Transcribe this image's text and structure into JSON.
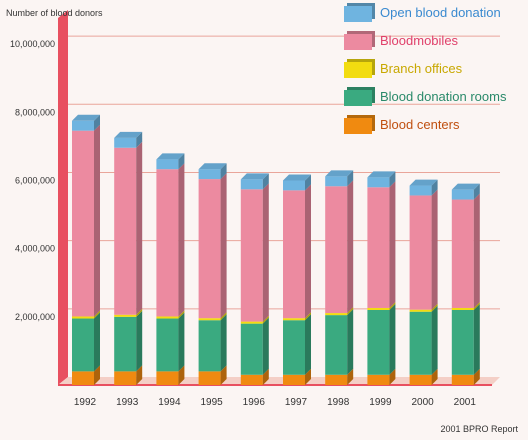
{
  "chart_data": {
    "type": "bar",
    "stacked": true,
    "ylabel": "Number of blood donors",
    "source": "2001 BPRO Report",
    "categories": [
      "1992",
      "1993",
      "1994",
      "1995",
      "1996",
      "1997",
      "1998",
      "1999",
      "2000",
      "2001"
    ],
    "ylim": [
      0,
      11000000
    ],
    "yticks": [
      "2,000,000",
      "4,000,000",
      "6,000,000",
      "8,000,000",
      "10,000,000"
    ],
    "ytick_values": [
      2000000,
      4000000,
      6000000,
      8000000,
      10000000
    ],
    "grid": true,
    "legend_position": "top-right",
    "series": [
      {
        "name": "Blood centers",
        "color": "#f08a10",
        "label_color": "#c05010",
        "values": [
          400000,
          400000,
          400000,
          400000,
          300000,
          300000,
          300000,
          300000,
          300000,
          300000
        ]
      },
      {
        "name": "Blood donation rooms",
        "color": "#3aaa80",
        "label_color": "#2a8a6a",
        "values": [
          1550000,
          1600000,
          1550000,
          1500000,
          1500000,
          1600000,
          1750000,
          1900000,
          1850000,
          1900000
        ]
      },
      {
        "name": "Branch offices",
        "color": "#f2dc10",
        "label_color": "#c8a800",
        "values": [
          60000,
          60000,
          60000,
          60000,
          60000,
          60000,
          60000,
          60000,
          60000,
          60000
        ]
      },
      {
        "name": "Bloodmobiles",
        "color": "#ec8aa0",
        "label_color": "#e0406a",
        "values": [
          5450000,
          4900000,
          4320000,
          4080000,
          3880000,
          3750000,
          3720000,
          3540000,
          3350000,
          3180000
        ]
      },
      {
        "name": "Open blood donation",
        "color": "#6fb4e0",
        "label_color": "#3a8ad0",
        "values": [
          290000,
          290000,
          290000,
          290000,
          290000,
          290000,
          290000,
          290000,
          290000,
          290000
        ]
      }
    ]
  }
}
